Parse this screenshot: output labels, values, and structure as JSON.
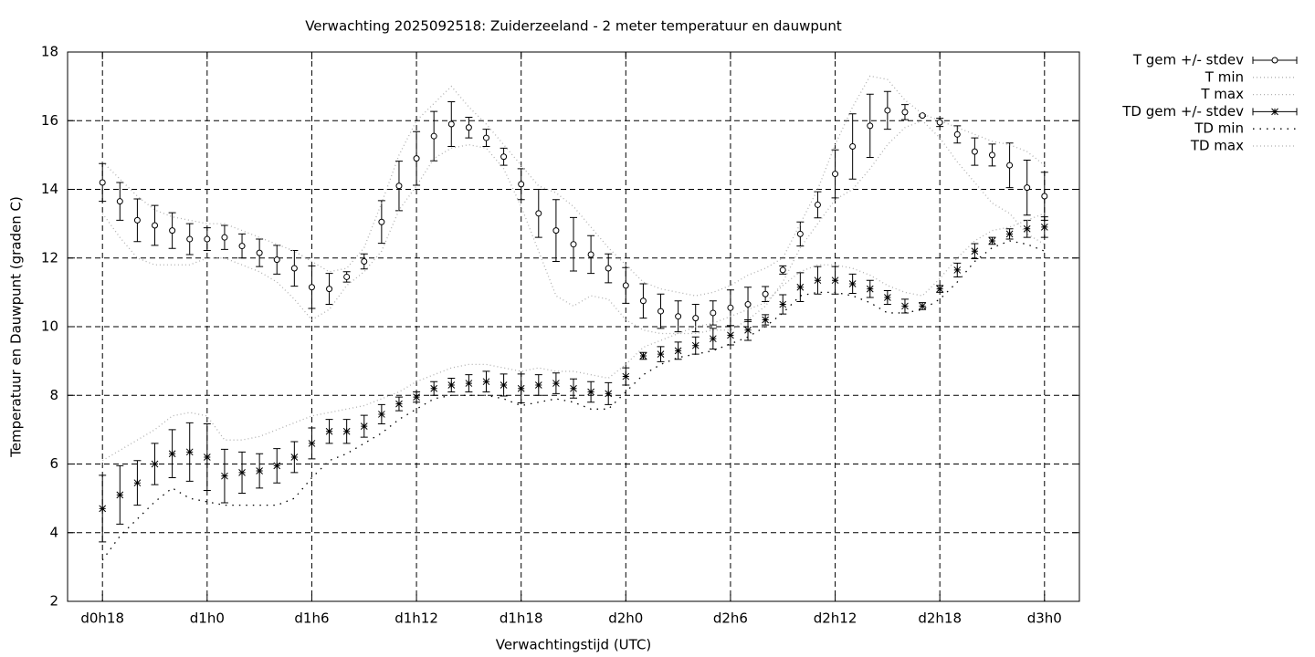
{
  "chart_data": {
    "type": "errorbar-line",
    "title": "Verwachting 2025092518: Zuiderzeeland - 2 meter temperatuur en dauwpunt",
    "xlabel": "Verwachtingstijd (UTC)",
    "ylabel": "Temperatuur en Dauwpunt (graden C)",
    "xlim": [
      16,
      74
    ],
    "ylim": [
      2,
      18
    ],
    "xticks": [
      {
        "value": 18,
        "label": "d0h18"
      },
      {
        "value": 24,
        "label": "d1h0"
      },
      {
        "value": 30,
        "label": "d1h6"
      },
      {
        "value": 36,
        "label": "d1h12"
      },
      {
        "value": 42,
        "label": "d1h18"
      },
      {
        "value": 48,
        "label": "d2h0"
      },
      {
        "value": 54,
        "label": "d2h6"
      },
      {
        "value": 60,
        "label": "d2h12"
      },
      {
        "value": 66,
        "label": "d2h18"
      },
      {
        "value": 72,
        "label": "d3h0"
      }
    ],
    "yticks": [
      2,
      4,
      6,
      8,
      10,
      12,
      14,
      16,
      18
    ],
    "grid": true,
    "legend": "outside-right",
    "x": [
      18,
      19,
      20,
      21,
      22,
      23,
      24,
      25,
      26,
      27,
      28,
      29,
      30,
      31,
      32,
      33,
      34,
      35,
      36,
      37,
      38,
      39,
      40,
      41,
      42,
      43,
      44,
      45,
      46,
      47,
      48,
      49,
      50,
      51,
      52,
      53,
      54,
      55,
      56,
      57,
      58,
      59,
      60,
      61,
      62,
      63,
      64,
      65,
      66,
      67,
      68,
      69,
      70,
      71,
      72
    ],
    "series": [
      {
        "name": "T gem +/- stdev",
        "style": "errorbar",
        "marker": "circle",
        "color": "#000000",
        "values": [
          14.2,
          13.65,
          13.1,
          12.95,
          12.8,
          12.55,
          12.55,
          12.6,
          12.35,
          12.15,
          11.95,
          11.7,
          11.15,
          11.1,
          11.45,
          11.9,
          13.05,
          14.1,
          14.9,
          15.55,
          15.9,
          15.8,
          15.5,
          14.95,
          14.15,
          13.3,
          12.8,
          12.4,
          12.1,
          11.7,
          11.2,
          10.75,
          10.45,
          10.3,
          10.25,
          10.4,
          10.55,
          10.65,
          10.95,
          11.65,
          12.7,
          13.55,
          14.45,
          15.25,
          15.85,
          16.3,
          16.25,
          16.15,
          15.95,
          15.6,
          15.1,
          15.0,
          14.7,
          14.05,
          13.8
        ],
        "errors": [
          0.55,
          0.55,
          0.62,
          0.58,
          0.52,
          0.45,
          0.33,
          0.35,
          0.35,
          0.4,
          0.42,
          0.52,
          0.62,
          0.45,
          0.15,
          0.22,
          0.62,
          0.72,
          0.78,
          0.72,
          0.65,
          0.3,
          0.25,
          0.25,
          0.45,
          0.7,
          0.9,
          0.78,
          0.55,
          0.42,
          0.52,
          0.5,
          0.5,
          0.45,
          0.4,
          0.35,
          0.52,
          0.5,
          0.22,
          0.12,
          0.35,
          0.38,
          0.7,
          0.95,
          0.92,
          0.55,
          0.22,
          0.02,
          0.12,
          0.25,
          0.4,
          0.32,
          0.65,
          0.8,
          0.7
        ]
      },
      {
        "name": "T min",
        "style": "line",
        "color": "#b0b0b0",
        "dash": "1 3",
        "values": [
          13.3,
          12.6,
          12.0,
          11.8,
          11.8,
          11.8,
          12.0,
          12.0,
          11.8,
          11.6,
          11.3,
          10.8,
          10.2,
          10.5,
          11.2,
          11.6,
          12.2,
          13.4,
          14.1,
          14.9,
          15.2,
          15.3,
          15.2,
          14.6,
          13.5,
          12.2,
          10.9,
          10.6,
          10.9,
          10.8,
          10.2,
          9.9,
          9.8,
          9.8,
          9.8,
          9.9,
          9.9,
          10.2,
          10.6,
          11.3,
          12.3,
          13.0,
          13.7,
          14.0,
          14.6,
          15.3,
          15.8,
          16.0,
          15.5,
          14.8,
          14.2,
          13.6,
          13.3,
          12.7,
          12.4
        ]
      },
      {
        "name": "T max",
        "style": "line",
        "color": "#b0b0b0",
        "dash": "1 3",
        "values": [
          14.8,
          14.3,
          13.8,
          13.4,
          13.2,
          13.1,
          13.0,
          13.0,
          12.8,
          12.6,
          12.4,
          12.2,
          11.9,
          11.6,
          11.7,
          12.3,
          13.6,
          15.0,
          16.0,
          16.5,
          17.0,
          16.4,
          15.9,
          15.3,
          14.7,
          14.1,
          13.9,
          13.5,
          12.9,
          12.3,
          11.8,
          11.3,
          11.1,
          11.0,
          10.9,
          11.0,
          11.2,
          11.5,
          11.7,
          12.0,
          13.0,
          14.0,
          15.3,
          16.4,
          17.3,
          17.2,
          16.6,
          16.2,
          16.0,
          15.8,
          15.6,
          15.4,
          15.3,
          15.1,
          14.7
        ]
      },
      {
        "name": "TD gem +/- stdev",
        "style": "errorbar",
        "marker": "star",
        "color": "#000000",
        "values": [
          4.7,
          5.1,
          5.45,
          6.0,
          6.3,
          6.35,
          6.2,
          5.65,
          5.75,
          5.8,
          5.95,
          6.2,
          6.6,
          6.95,
          6.95,
          7.1,
          7.45,
          7.75,
          7.95,
          8.2,
          8.3,
          8.35,
          8.4,
          8.3,
          8.2,
          8.3,
          8.35,
          8.2,
          8.1,
          8.05,
          8.55,
          9.15,
          9.2,
          9.3,
          9.45,
          9.65,
          9.75,
          9.9,
          10.2,
          10.65,
          11.15,
          11.35,
          11.35,
          11.25,
          11.1,
          10.85,
          10.6,
          10.6,
          11.1,
          11.65,
          12.2,
          12.5,
          12.7,
          12.85,
          12.9
        ],
        "errors": [
          0.97,
          0.85,
          0.65,
          0.6,
          0.7,
          0.85,
          0.97,
          0.78,
          0.6,
          0.5,
          0.5,
          0.45,
          0.45,
          0.35,
          0.35,
          0.32,
          0.28,
          0.2,
          0.15,
          0.2,
          0.2,
          0.25,
          0.3,
          0.32,
          0.42,
          0.3,
          0.3,
          0.28,
          0.3,
          0.32,
          0.25,
          0.1,
          0.22,
          0.25,
          0.25,
          0.3,
          0.28,
          0.3,
          0.15,
          0.28,
          0.42,
          0.4,
          0.4,
          0.28,
          0.25,
          0.2,
          0.2,
          0.1,
          0.1,
          0.2,
          0.22,
          0.1,
          0.15,
          0.25,
          0.3
        ]
      },
      {
        "name": "TD min",
        "style": "line",
        "color": "#000000",
        "dash": "1.5 6",
        "values": [
          3.2,
          3.9,
          4.4,
          4.9,
          5.3,
          5.0,
          4.9,
          4.8,
          4.8,
          4.8,
          4.8,
          5.0,
          5.6,
          6.1,
          6.3,
          6.6,
          6.9,
          7.3,
          7.6,
          7.9,
          8.0,
          8.0,
          8.0,
          7.9,
          7.7,
          7.8,
          7.9,
          7.8,
          7.6,
          7.6,
          8.1,
          8.6,
          8.9,
          9.1,
          9.2,
          9.3,
          9.5,
          9.7,
          10.0,
          10.4,
          10.9,
          11.0,
          11.0,
          10.9,
          10.7,
          10.4,
          10.4,
          10.5,
          10.8,
          11.3,
          11.9,
          12.3,
          12.5,
          12.4,
          12.2
        ]
      },
      {
        "name": "TD max",
        "style": "line",
        "color": "#b0b0b0",
        "dash": "1 3",
        "values": [
          6.1,
          6.4,
          6.7,
          7.0,
          7.4,
          7.5,
          7.4,
          6.7,
          6.7,
          6.8,
          7.0,
          7.2,
          7.4,
          7.5,
          7.6,
          7.7,
          7.9,
          8.1,
          8.4,
          8.6,
          8.8,
          8.9,
          8.9,
          8.8,
          8.7,
          8.8,
          8.7,
          8.7,
          8.6,
          8.5,
          8.9,
          9.4,
          9.6,
          9.8,
          10.0,
          10.1,
          10.3,
          10.5,
          10.7,
          11.2,
          11.6,
          11.8,
          11.8,
          11.7,
          11.5,
          11.2,
          11.0,
          10.9,
          11.4,
          12.0,
          12.5,
          12.8,
          12.9,
          13.1,
          13.3
        ]
      }
    ]
  }
}
